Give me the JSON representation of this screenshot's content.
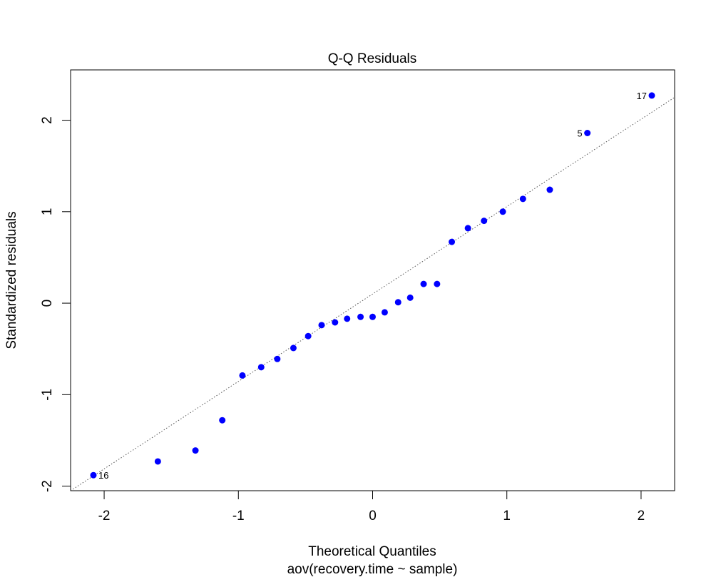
{
  "chart_data": {
    "type": "scatter",
    "title": "Q-Q Residuals",
    "xlabel": "Theoretical Quantiles",
    "subtitle": "aov(recovery.time ~ sample)",
    "ylabel": "Standardized residuals",
    "xlim": [
      -2.25,
      2.25
    ],
    "ylim": [
      -2.05,
      2.55
    ],
    "xticks": [
      -2,
      -1,
      0,
      1,
      2
    ],
    "yticks": [
      -2,
      -1,
      0,
      1,
      2
    ],
    "xtick_labels": [
      "-2",
      "-1",
      "0",
      "1",
      "2"
    ],
    "ytick_labels": [
      "-2",
      "-1",
      "0",
      "1",
      "2"
    ],
    "grid": false,
    "point_color": "#0000ff",
    "line_color": "#555555",
    "reference_line": {
      "style": "dotted",
      "points": [
        [
          -2.25,
          -2.05
        ],
        [
          2.25,
          2.25
        ]
      ]
    },
    "points": [
      {
        "x": -2.08,
        "y": -1.88,
        "label": "16"
      },
      {
        "x": -1.6,
        "y": -1.73
      },
      {
        "x": -1.32,
        "y": -1.61
      },
      {
        "x": -1.12,
        "y": -1.28
      },
      {
        "x": -0.97,
        "y": -0.79
      },
      {
        "x": -0.83,
        "y": -0.7
      },
      {
        "x": -0.71,
        "y": -0.61
      },
      {
        "x": -0.59,
        "y": -0.49
      },
      {
        "x": -0.48,
        "y": -0.36
      },
      {
        "x": -0.38,
        "y": -0.24
      },
      {
        "x": -0.28,
        "y": -0.21
      },
      {
        "x": -0.19,
        "y": -0.17
      },
      {
        "x": -0.09,
        "y": -0.15
      },
      {
        "x": 0.0,
        "y": -0.15
      },
      {
        "x": 0.09,
        "y": -0.1
      },
      {
        "x": 0.19,
        "y": 0.01
      },
      {
        "x": 0.28,
        "y": 0.06
      },
      {
        "x": 0.38,
        "y": 0.21
      },
      {
        "x": 0.48,
        "y": 0.21
      },
      {
        "x": 0.59,
        "y": 0.67
      },
      {
        "x": 0.71,
        "y": 0.82
      },
      {
        "x": 0.83,
        "y": 0.9
      },
      {
        "x": 0.97,
        "y": 1.0
      },
      {
        "x": 1.12,
        "y": 1.14
      },
      {
        "x": 1.32,
        "y": 1.24
      },
      {
        "x": 1.6,
        "y": 1.86,
        "label": "5"
      },
      {
        "x": 2.08,
        "y": 2.27,
        "label": "17"
      }
    ]
  }
}
